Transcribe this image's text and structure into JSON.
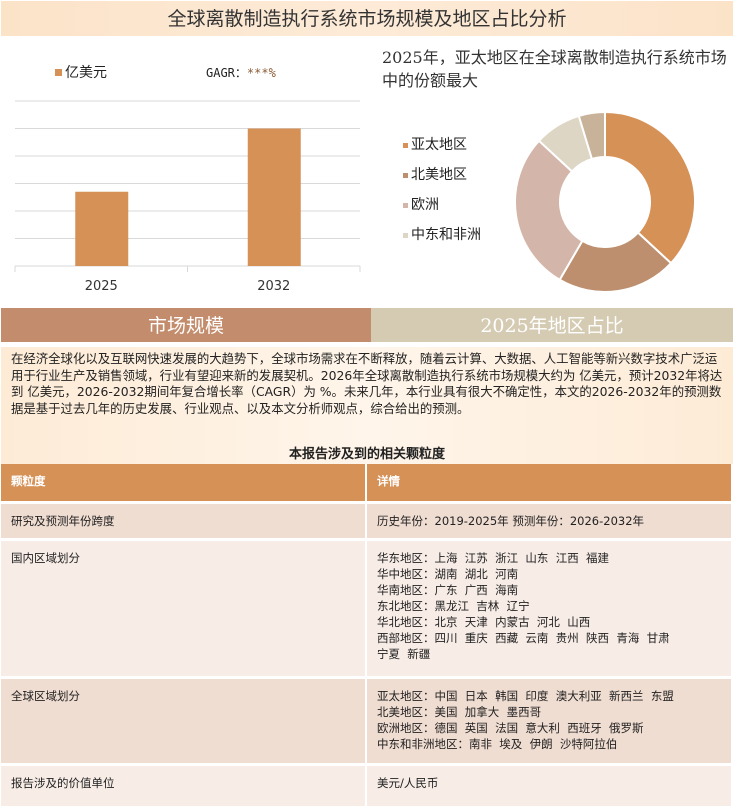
{
  "title": "全球离散制造执行系统市场规模及地区占比分析",
  "bar_chart": {
    "legend": "亿美元",
    "cagr_label": "GAGR：",
    "cagr_value": "***%",
    "color": "#d69157"
  },
  "pie_chart": {
    "title": "2025年，亚太地区在全球离散制造执行系统市场中的份额最大"
  },
  "chart_data": [
    {
      "type": "bar",
      "categories": [
        "2025",
        "2032"
      ],
      "values": [
        2.7,
        5.0
      ],
      "ylim": [
        0,
        6
      ],
      "grid": true,
      "series": [
        {
          "name": "亿美元",
          "values": [
            2.7,
            5.0
          ]
        }
      ]
    },
    {
      "type": "pie",
      "donut": true,
      "labels": [
        "亚太地区",
        "北美地区",
        "欧洲",
        "中东和非洲",
        ""
      ],
      "values": [
        36.9,
        21.5,
        28.5,
        8.4,
        4.7
      ],
      "colors": [
        "#d69157",
        "#bd8f6e",
        "#d4b5aa",
        "#ddd6c4",
        "#c8b299"
      ],
      "legend_position": "left"
    }
  ],
  "banners": {
    "left": "市场规模",
    "right": "2025年地区占比"
  },
  "intro": "在经济全球化以及互联网快速发展的大趋势下，全球市场需求在不断释放，随着云计算、大数据、人工智能等新兴数字技术广泛运用于行业生产及销售领域，行业有望迎来新的发展契机。2026年全球离散制造执行系统市场规模大约为 亿美元，预计2032年将达到 亿美元，2026-2032期间年复合增长率（CAGR）为 %。未来几年，本行业具有很大不确定性，本文的2026-2032年的预测数据是基于过去几年的历史发展、行业观点、以及本文分析师观点，综合给出的预测。",
  "table": {
    "title": "本报告涉及到的相关颗粒度",
    "headers": [
      "颗粒度",
      "详情"
    ],
    "rows": [
      {
        "label": "研究及预测年份跨度",
        "lines": [
          "历史年份：2019-2025年 预测年份：2026-2032年"
        ]
      },
      {
        "label": "国内区域划分",
        "lines": [
          "华东地区：上海  江苏  浙江  山东  江西  福建",
          "华中地区：湖南  湖北  河南",
          "华南地区：广东  广西  海南",
          "东北地区：黑龙江  吉林  辽宁",
          "华北地区：北京  天津  内蒙古  河北  山西",
          "西部地区：四川  重庆  西藏  云南  贵州  陕西  青海  甘肃",
          "宁夏  新疆"
        ]
      },
      {
        "label": "全球区域划分",
        "lines": [
          "亚太地区：中国  日本  韩国  印度  澳大利亚  新西兰  东盟",
          "北美地区：美国  加拿大  墨西哥",
          "欧洲地区：德国  英国  法国  意大利  西班牙  俄罗斯",
          "中东和非洲地区：南非  埃及  伊朗  沙特阿拉伯"
        ]
      },
      {
        "label": "报告涉及的价值单位",
        "lines": [
          "美元/人民币"
        ]
      }
    ]
  }
}
